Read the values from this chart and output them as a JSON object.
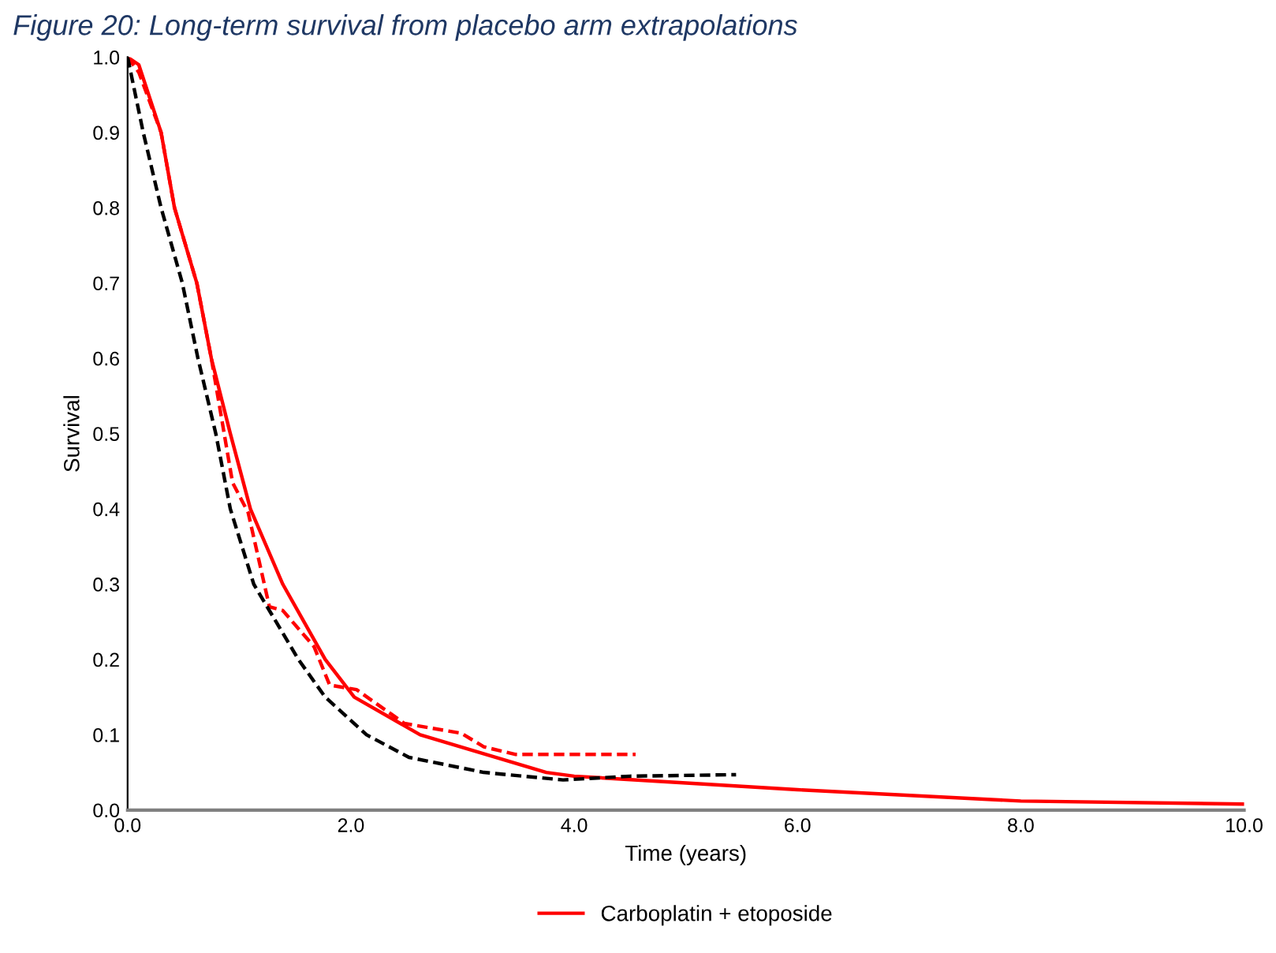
{
  "chart_data": {
    "type": "line",
    "title": "Figure 20: Long-term survival from placebo arm extrapolations",
    "xlabel": "Time (years)",
    "ylabel": "Survival",
    "xlim": [
      0,
      10
    ],
    "ylim": [
      0,
      1
    ],
    "xticks": [
      {
        "value": 0,
        "label": "0.0"
      },
      {
        "value": 2,
        "label": "2.0"
      },
      {
        "value": 4,
        "label": "4.0"
      },
      {
        "value": 6,
        "label": "6.0"
      },
      {
        "value": 8,
        "label": "8.0"
      },
      {
        "value": 10,
        "label": "10.0"
      }
    ],
    "yticks": [
      {
        "value": 0,
        "label": "0.0"
      },
      {
        "value": 0.1,
        "label": "0.1"
      },
      {
        "value": 0.2,
        "label": "0.2"
      },
      {
        "value": 0.3,
        "label": "0.3"
      },
      {
        "value": 0.4,
        "label": "0.4"
      },
      {
        "value": 0.5,
        "label": "0.5"
      },
      {
        "value": 0.6,
        "label": "0.6"
      },
      {
        "value": 0.7,
        "label": "0.7"
      },
      {
        "value": 0.8,
        "label": "0.8"
      },
      {
        "value": 0.9,
        "label": "0.9"
      },
      {
        "value": 1.0,
        "label": "1.0"
      }
    ],
    "grid": false,
    "legend": "bottom",
    "marker": "none",
    "series": [
      {
        "name": "Carboplatin + etoposide",
        "color": "#ff0000",
        "line_style": "solid",
        "x": [
          0,
          0.1,
          0.3,
          0.42,
          0.62,
          0.75,
          0.92,
          1.1,
          1.39,
          1.77,
          2.03,
          2.62,
          3.75,
          4.0,
          6.0,
          8.0,
          10.0
        ],
        "values": [
          1.0,
          0.99,
          0.9,
          0.8,
          0.7,
          0.6,
          0.5,
          0.4,
          0.3,
          0.2,
          0.15,
          0.1,
          0.05,
          0.045,
          0.027,
          0.012,
          0.008
        ]
      },
      {
        "color": "#ff0000",
        "line_style": "dashed",
        "x": [
          0,
          0.1,
          0.3,
          0.42,
          0.62,
          0.75,
          0.94,
          1.08,
          1.27,
          1.39,
          1.67,
          1.81,
          2.05,
          2.48,
          2.99,
          3.19,
          3.47,
          4.55
        ],
        "values": [
          1.0,
          0.98,
          0.9,
          0.8,
          0.7,
          0.6,
          0.435,
          0.395,
          0.27,
          0.265,
          0.217,
          0.166,
          0.16,
          0.115,
          0.102,
          0.084,
          0.074,
          0.074
        ]
      },
      {
        "color": "#000000",
        "line_style": "dashed",
        "x": [
          0,
          0.14,
          0.3,
          0.49,
          0.63,
          0.79,
          0.92,
          1.13,
          1.53,
          1.77,
          2.14,
          2.52,
          3.19,
          3.9,
          4.5,
          5.45
        ],
        "values": [
          1.0,
          0.9,
          0.8,
          0.7,
          0.6,
          0.5,
          0.4,
          0.3,
          0.2,
          0.15,
          0.1,
          0.07,
          0.05,
          0.04,
          0.045,
          0.047
        ]
      }
    ]
  }
}
